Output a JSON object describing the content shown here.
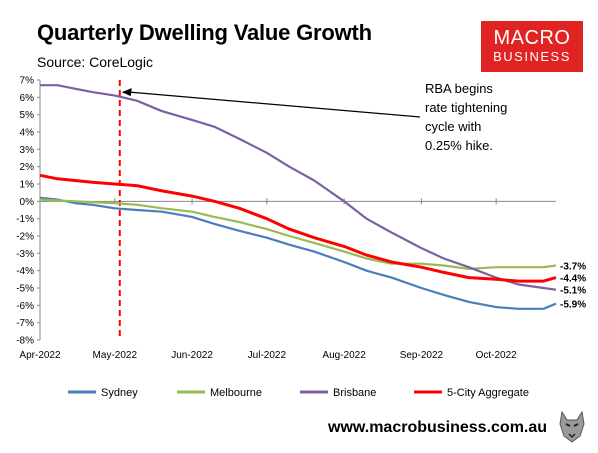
{
  "header": {
    "title": "Quarterly Dwelling Value Growth",
    "subtitle": "Source: CoreLogic",
    "logo_line1": "MACRO",
    "logo_line2": "BUSINESS"
  },
  "footer": {
    "url": "www.macrobusiness.com.au"
  },
  "colors": {
    "sydney": "#4a7ebb",
    "melbourne": "#98b954",
    "brisbane": "#7d60a0",
    "aggregate": "#ff0000",
    "marker": "#ff0000",
    "logo_bg": "#e02424"
  },
  "chart_data": {
    "type": "line",
    "x_ticks": [
      "Apr-2022",
      "May-2022",
      "Jun-2022",
      "Jul-2022",
      "Aug-2022",
      "Sep-2022",
      "Oct-2022"
    ],
    "x_domain": [
      "2022-04-01",
      "2022-10-25"
    ],
    "ylim": [
      -8,
      7
    ],
    "y_ticks": [
      "7%",
      "6%",
      "5%",
      "4%",
      "3%",
      "2%",
      "1%",
      "0%",
      "-1%",
      "-2%",
      "-3%",
      "-4%",
      "-5%",
      "-6%",
      "-7%",
      "-8%"
    ],
    "grid": false,
    "legend_position": "bottom",
    "series": [
      {
        "name": "Sydney",
        "color_key": "sydney",
        "points": [
          [
            "2022-04-01",
            0.2
          ],
          [
            "2022-04-08",
            0.1
          ],
          [
            "2022-04-15",
            -0.1
          ],
          [
            "2022-04-22",
            -0.2
          ],
          [
            "2022-05-01",
            -0.4
          ],
          [
            "2022-05-10",
            -0.5
          ],
          [
            "2022-05-20",
            -0.6
          ],
          [
            "2022-06-01",
            -0.9
          ],
          [
            "2022-06-10",
            -1.3
          ],
          [
            "2022-06-20",
            -1.7
          ],
          [
            "2022-07-01",
            -2.1
          ],
          [
            "2022-07-10",
            -2.5
          ],
          [
            "2022-07-20",
            -2.9
          ],
          [
            "2022-08-01",
            -3.5
          ],
          [
            "2022-08-10",
            -4.0
          ],
          [
            "2022-08-20",
            -4.4
          ],
          [
            "2022-09-01",
            -5.0
          ],
          [
            "2022-09-10",
            -5.4
          ],
          [
            "2022-09-20",
            -5.8
          ],
          [
            "2022-10-01",
            -6.1
          ],
          [
            "2022-10-10",
            -6.2
          ],
          [
            "2022-10-20",
            -6.2
          ],
          [
            "2022-10-25",
            -5.9
          ]
        ],
        "end_label": "-5.9%"
      },
      {
        "name": "Melbourne",
        "color_key": "melbourne",
        "points": [
          [
            "2022-04-01",
            0.1
          ],
          [
            "2022-04-08",
            0.05
          ],
          [
            "2022-04-15",
            0.0
          ],
          [
            "2022-04-22",
            -0.05
          ],
          [
            "2022-05-01",
            -0.1
          ],
          [
            "2022-05-10",
            -0.2
          ],
          [
            "2022-05-20",
            -0.4
          ],
          [
            "2022-06-01",
            -0.6
          ],
          [
            "2022-06-10",
            -0.9
          ],
          [
            "2022-06-20",
            -1.2
          ],
          [
            "2022-07-01",
            -1.6
          ],
          [
            "2022-07-10",
            -2.0
          ],
          [
            "2022-07-20",
            -2.4
          ],
          [
            "2022-08-01",
            -2.9
          ],
          [
            "2022-08-10",
            -3.3
          ],
          [
            "2022-08-20",
            -3.6
          ],
          [
            "2022-09-01",
            -3.6
          ],
          [
            "2022-09-10",
            -3.7
          ],
          [
            "2022-09-20",
            -3.9
          ],
          [
            "2022-10-01",
            -3.8
          ],
          [
            "2022-10-10",
            -3.8
          ],
          [
            "2022-10-20",
            -3.8
          ],
          [
            "2022-10-25",
            -3.7
          ]
        ],
        "end_label": "-3.7%"
      },
      {
        "name": "Brisbane",
        "color_key": "brisbane",
        "points": [
          [
            "2022-04-01",
            6.7
          ],
          [
            "2022-04-08",
            6.7
          ],
          [
            "2022-04-15",
            6.5
          ],
          [
            "2022-04-22",
            6.3
          ],
          [
            "2022-05-01",
            6.1
          ],
          [
            "2022-05-10",
            5.8
          ],
          [
            "2022-05-20",
            5.2
          ],
          [
            "2022-06-01",
            4.7
          ],
          [
            "2022-06-10",
            4.3
          ],
          [
            "2022-06-20",
            3.6
          ],
          [
            "2022-07-01",
            2.8
          ],
          [
            "2022-07-10",
            2.0
          ],
          [
            "2022-07-20",
            1.2
          ],
          [
            "2022-08-01",
            0.0
          ],
          [
            "2022-08-10",
            -1.0
          ],
          [
            "2022-08-20",
            -1.8
          ],
          [
            "2022-09-01",
            -2.7
          ],
          [
            "2022-09-10",
            -3.3
          ],
          [
            "2022-09-20",
            -3.8
          ],
          [
            "2022-10-01",
            -4.4
          ],
          [
            "2022-10-10",
            -4.8
          ],
          [
            "2022-10-20",
            -5.0
          ],
          [
            "2022-10-25",
            -5.1
          ]
        ],
        "end_label": "-5.1%"
      },
      {
        "name": "5-City Aggregate",
        "color_key": "aggregate",
        "points": [
          [
            "2022-04-01",
            1.5
          ],
          [
            "2022-04-08",
            1.3
          ],
          [
            "2022-04-15",
            1.2
          ],
          [
            "2022-04-22",
            1.1
          ],
          [
            "2022-05-01",
            1.0
          ],
          [
            "2022-05-10",
            0.9
          ],
          [
            "2022-05-20",
            0.6
          ],
          [
            "2022-06-01",
            0.3
          ],
          [
            "2022-06-10",
            0.0
          ],
          [
            "2022-06-20",
            -0.4
          ],
          [
            "2022-07-01",
            -1.0
          ],
          [
            "2022-07-10",
            -1.6
          ],
          [
            "2022-07-20",
            -2.1
          ],
          [
            "2022-08-01",
            -2.6
          ],
          [
            "2022-08-10",
            -3.1
          ],
          [
            "2022-08-20",
            -3.5
          ],
          [
            "2022-09-01",
            -3.8
          ],
          [
            "2022-09-10",
            -4.1
          ],
          [
            "2022-09-20",
            -4.4
          ],
          [
            "2022-10-01",
            -4.5
          ],
          [
            "2022-10-10",
            -4.6
          ],
          [
            "2022-10-20",
            -4.6
          ],
          [
            "2022-10-25",
            -4.4
          ]
        ],
        "end_label": "-4.4%"
      }
    ],
    "marker": {
      "date": "2022-05-03"
    },
    "annotation": {
      "lines": [
        "RBA begins",
        "rate tightening",
        "cycle with",
        "0.25% hike."
      ],
      "arrow_to": [
        "2022-05-03",
        6.3
      ]
    }
  }
}
